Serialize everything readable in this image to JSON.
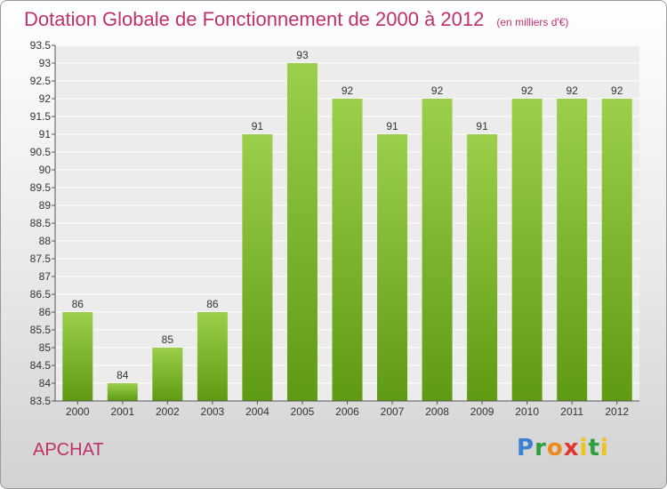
{
  "header": {
    "title": "Dotation Globale de Fonctionnement de 2000 à 2012",
    "unit": "(en milliers d'€)"
  },
  "footer": {
    "place": "APCHAT",
    "logo_text": "Proxiti"
  },
  "colors": {
    "title": "#c0306a",
    "bar_top": "#9ccf4a",
    "bar_bottom": "#5e9a12"
  },
  "chart_data": {
    "type": "bar",
    "categories": [
      "2000",
      "2001",
      "2002",
      "2003",
      "2004",
      "2005",
      "2006",
      "2007",
      "2008",
      "2009",
      "2010",
      "2011",
      "2012"
    ],
    "values": [
      86,
      84,
      85,
      86,
      91,
      93,
      92,
      91,
      92,
      91,
      92,
      92,
      92
    ],
    "ylim": [
      83.5,
      93.5
    ],
    "yticks": [
      "83.5",
      "84",
      "84.5",
      "85",
      "85.5",
      "86",
      "86.5",
      "87",
      "87.5",
      "88",
      "88.5",
      "89",
      "89.5",
      "90",
      "90.5",
      "91",
      "91.5",
      "92",
      "92.5",
      "93",
      "93.5"
    ],
    "grid": true,
    "legend": "none"
  }
}
